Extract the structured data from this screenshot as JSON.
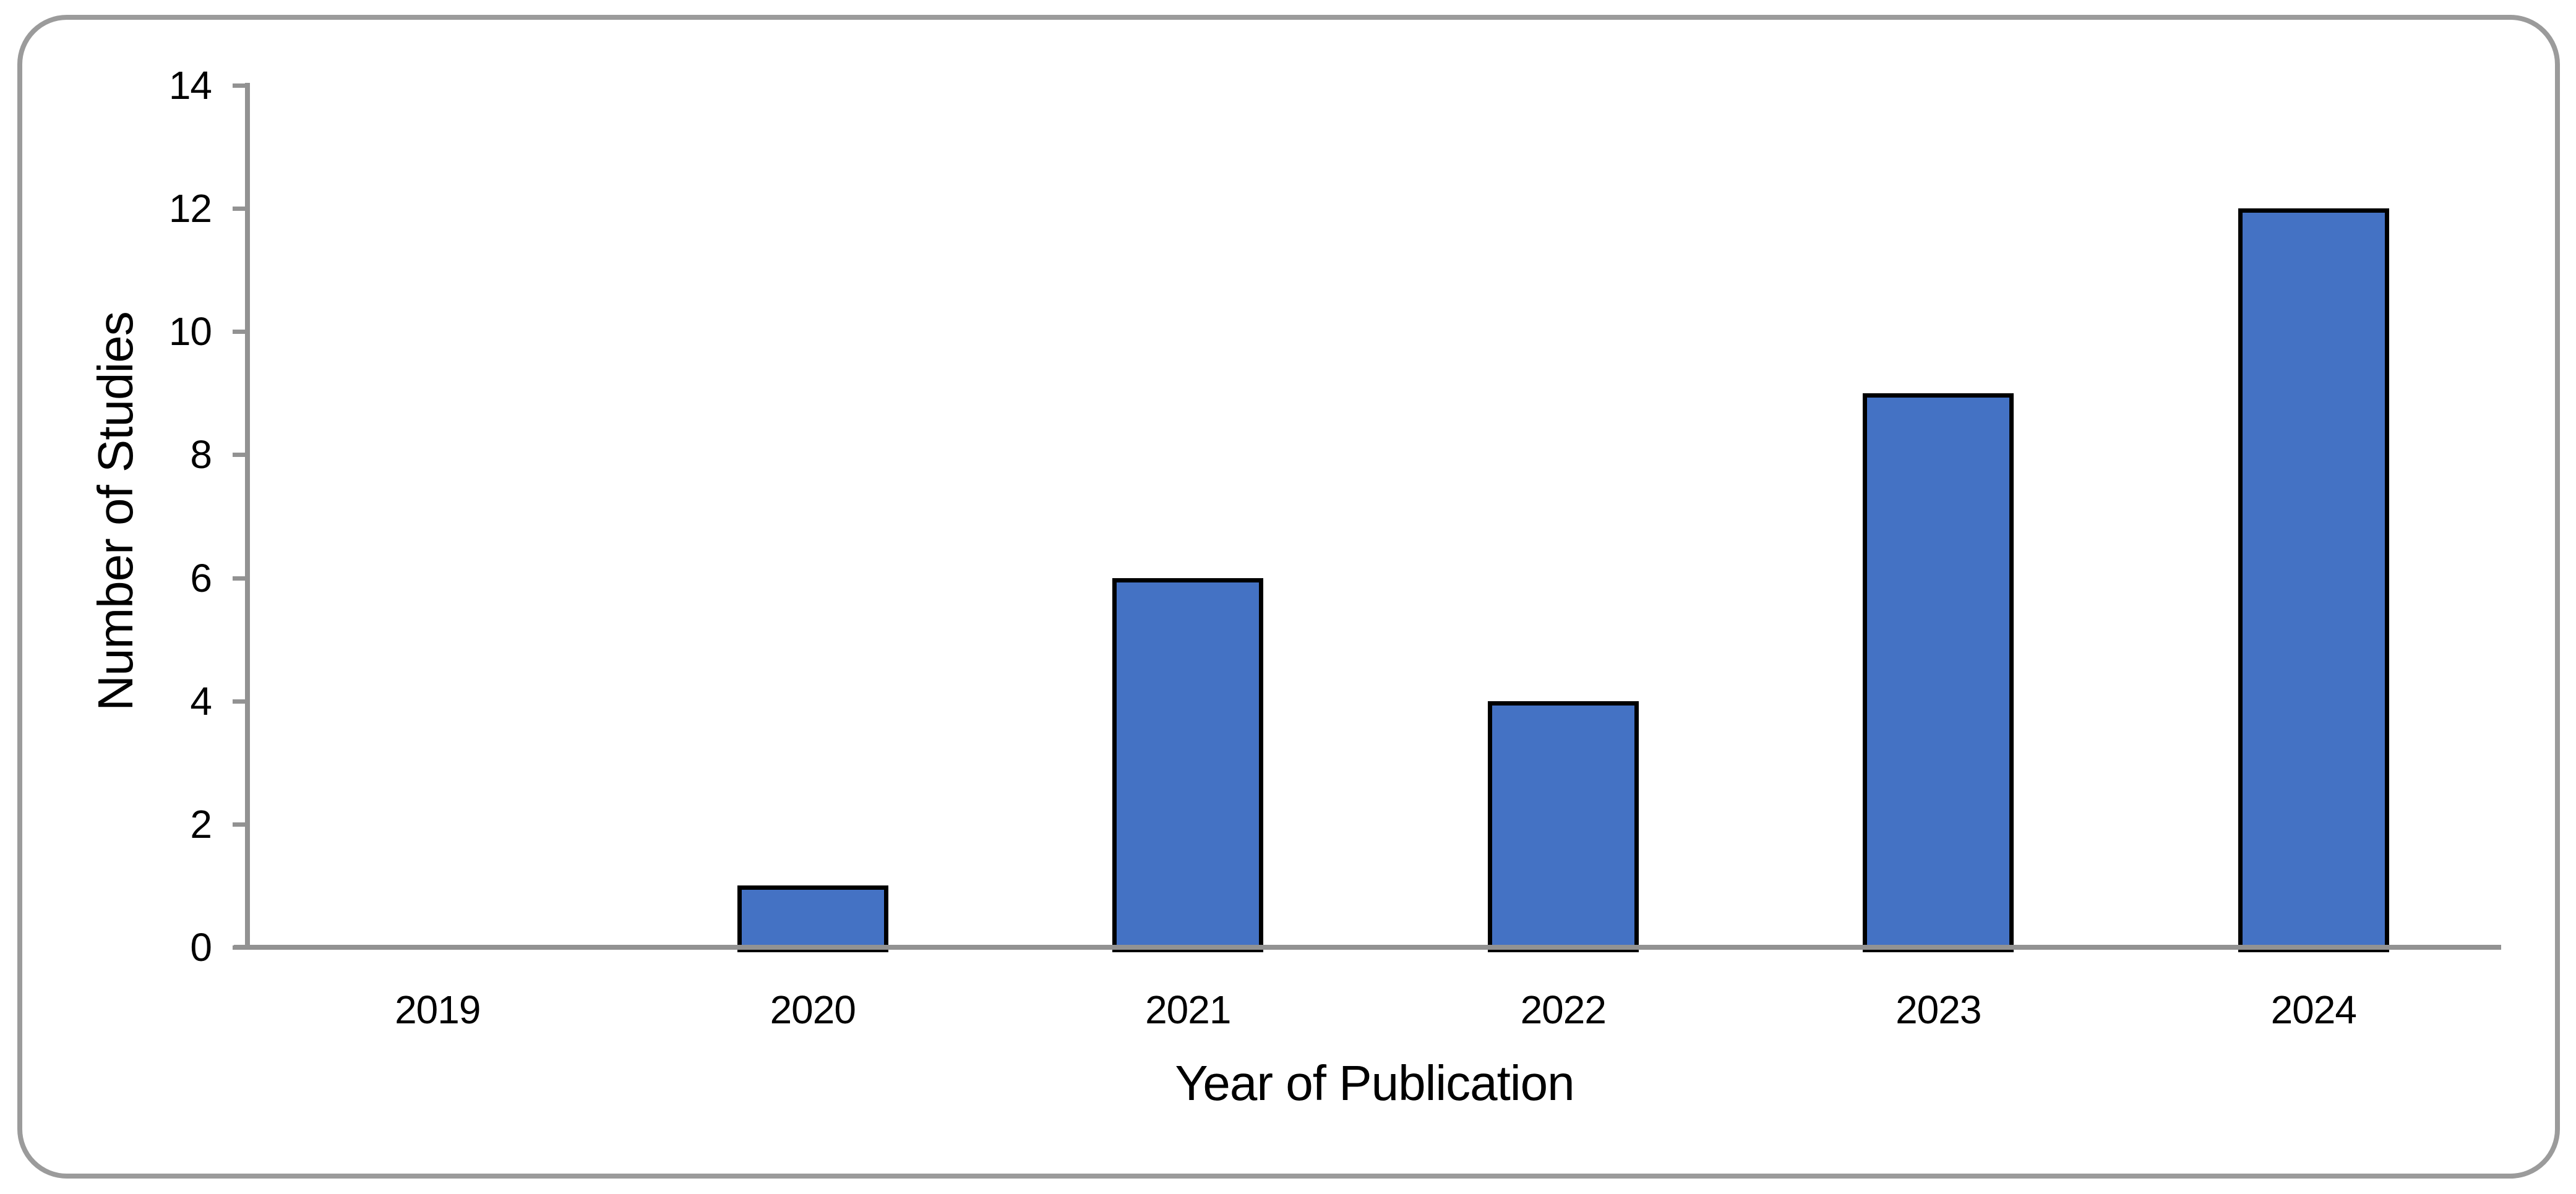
{
  "figure": {
    "background_color": "#FFFFFF",
    "frame_border_color": "#9B9B9B"
  },
  "chart_data": {
    "type": "bar",
    "title": "",
    "categories": [
      "2019",
      "2020",
      "2021",
      "2022",
      "2023",
      "2024"
    ],
    "values": [
      0,
      1,
      6,
      4,
      9,
      12
    ],
    "xlabel": "Year of Publication",
    "ylabel": "Number of Studies",
    "ylim": [
      0,
      14
    ],
    "yticks": [
      0,
      2,
      4,
      6,
      8,
      10,
      12,
      14
    ],
    "grid": false,
    "legend": "none",
    "bar_fill_color": "#4472C4",
    "bar_border_color": "#000000",
    "axis_line_color": "#929292",
    "text_color": "#000000"
  }
}
